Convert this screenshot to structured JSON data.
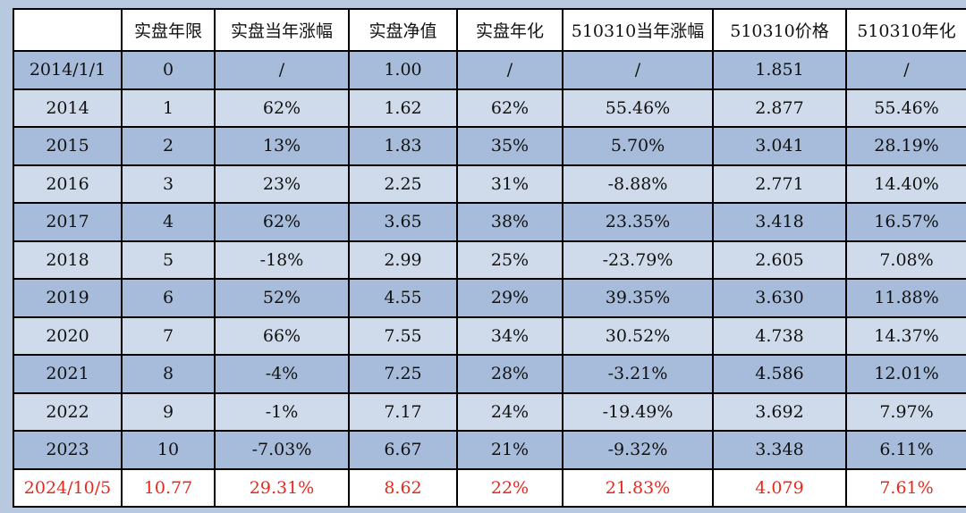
{
  "chart_data": {
    "type": "table",
    "columns": [
      "",
      "实盘年限",
      "实盘当年涨幅",
      "实盘净值",
      "实盘年化",
      "510310当年涨幅",
      "510310价格",
      "510310年化"
    ],
    "rows": [
      [
        "2014/1/1",
        "0",
        "/",
        "1.00",
        "/",
        "/",
        "1.851",
        "/"
      ],
      [
        "2014",
        "1",
        "62%",
        "1.62",
        "62%",
        "55.46%",
        "2.877",
        "55.46%"
      ],
      [
        "2015",
        "2",
        "13%",
        "1.83",
        "35%",
        "5.70%",
        "3.041",
        "28.19%"
      ],
      [
        "2016",
        "3",
        "23%",
        "2.25",
        "31%",
        "-8.88%",
        "2.771",
        "14.40%"
      ],
      [
        "2017",
        "4",
        "62%",
        "3.65",
        "38%",
        "23.35%",
        "3.418",
        "16.57%"
      ],
      [
        "2018",
        "5",
        "-18%",
        "2.99",
        "25%",
        "-23.79%",
        "2.605",
        "7.08%"
      ],
      [
        "2019",
        "6",
        "52%",
        "4.55",
        "29%",
        "39.35%",
        "3.630",
        "11.88%"
      ],
      [
        "2020",
        "7",
        "66%",
        "7.55",
        "34%",
        "30.52%",
        "4.738",
        "14.37%"
      ],
      [
        "2021",
        "8",
        "-4%",
        "7.25",
        "28%",
        "-3.21%",
        "4.586",
        "12.01%"
      ],
      [
        "2022",
        "9",
        "-1%",
        "7.17",
        "24%",
        "-19.49%",
        "3.692",
        "7.97%"
      ],
      [
        "2023",
        "10",
        "-7.03%",
        "6.67",
        "21%",
        "-9.32%",
        "3.348",
        "6.11%"
      ],
      [
        "2024/10/5",
        "10.77",
        "29.31%",
        "8.62",
        "22%",
        "21.83%",
        "4.079",
        "7.61%"
      ]
    ],
    "highlight_last_row_color": "#e8281c",
    "row_colors": [
      "#a7bcda",
      "#cfdbeb"
    ],
    "header_color": "#ffffff"
  }
}
